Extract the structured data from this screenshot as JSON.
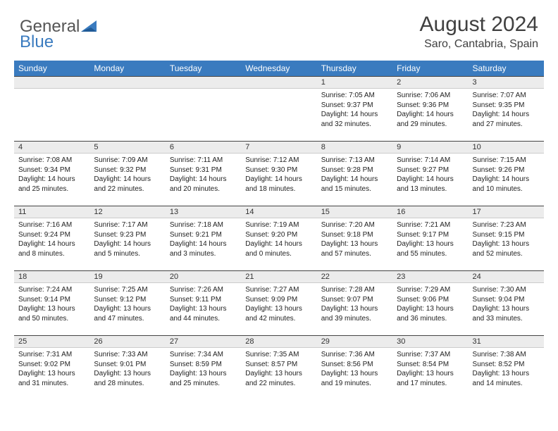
{
  "logo": {
    "text1": "General",
    "text2": "Blue"
  },
  "title": "August 2024",
  "location": "Saro, Cantabria, Spain",
  "colors": {
    "header_bg": "#3a7bbf",
    "header_text": "#ffffff",
    "daynum_bg": "#ececec",
    "rule": "#444444",
    "body_text": "#222222"
  },
  "weekdays": [
    "Sunday",
    "Monday",
    "Tuesday",
    "Wednesday",
    "Thursday",
    "Friday",
    "Saturday"
  ],
  "weeks": [
    [
      {
        "n": "",
        "lines": []
      },
      {
        "n": "",
        "lines": []
      },
      {
        "n": "",
        "lines": []
      },
      {
        "n": "",
        "lines": []
      },
      {
        "n": "1",
        "lines": [
          "Sunrise: 7:05 AM",
          "Sunset: 9:37 PM",
          "Daylight: 14 hours",
          "and 32 minutes."
        ]
      },
      {
        "n": "2",
        "lines": [
          "Sunrise: 7:06 AM",
          "Sunset: 9:36 PM",
          "Daylight: 14 hours",
          "and 29 minutes."
        ]
      },
      {
        "n": "3",
        "lines": [
          "Sunrise: 7:07 AM",
          "Sunset: 9:35 PM",
          "Daylight: 14 hours",
          "and 27 minutes."
        ]
      }
    ],
    [
      {
        "n": "4",
        "lines": [
          "Sunrise: 7:08 AM",
          "Sunset: 9:34 PM",
          "Daylight: 14 hours",
          "and 25 minutes."
        ]
      },
      {
        "n": "5",
        "lines": [
          "Sunrise: 7:09 AM",
          "Sunset: 9:32 PM",
          "Daylight: 14 hours",
          "and 22 minutes."
        ]
      },
      {
        "n": "6",
        "lines": [
          "Sunrise: 7:11 AM",
          "Sunset: 9:31 PM",
          "Daylight: 14 hours",
          "and 20 minutes."
        ]
      },
      {
        "n": "7",
        "lines": [
          "Sunrise: 7:12 AM",
          "Sunset: 9:30 PM",
          "Daylight: 14 hours",
          "and 18 minutes."
        ]
      },
      {
        "n": "8",
        "lines": [
          "Sunrise: 7:13 AM",
          "Sunset: 9:28 PM",
          "Daylight: 14 hours",
          "and 15 minutes."
        ]
      },
      {
        "n": "9",
        "lines": [
          "Sunrise: 7:14 AM",
          "Sunset: 9:27 PM",
          "Daylight: 14 hours",
          "and 13 minutes."
        ]
      },
      {
        "n": "10",
        "lines": [
          "Sunrise: 7:15 AM",
          "Sunset: 9:26 PM",
          "Daylight: 14 hours",
          "and 10 minutes."
        ]
      }
    ],
    [
      {
        "n": "11",
        "lines": [
          "Sunrise: 7:16 AM",
          "Sunset: 9:24 PM",
          "Daylight: 14 hours",
          "and 8 minutes."
        ]
      },
      {
        "n": "12",
        "lines": [
          "Sunrise: 7:17 AM",
          "Sunset: 9:23 PM",
          "Daylight: 14 hours",
          "and 5 minutes."
        ]
      },
      {
        "n": "13",
        "lines": [
          "Sunrise: 7:18 AM",
          "Sunset: 9:21 PM",
          "Daylight: 14 hours",
          "and 3 minutes."
        ]
      },
      {
        "n": "14",
        "lines": [
          "Sunrise: 7:19 AM",
          "Sunset: 9:20 PM",
          "Daylight: 14 hours",
          "and 0 minutes."
        ]
      },
      {
        "n": "15",
        "lines": [
          "Sunrise: 7:20 AM",
          "Sunset: 9:18 PM",
          "Daylight: 13 hours",
          "and 57 minutes."
        ]
      },
      {
        "n": "16",
        "lines": [
          "Sunrise: 7:21 AM",
          "Sunset: 9:17 PM",
          "Daylight: 13 hours",
          "and 55 minutes."
        ]
      },
      {
        "n": "17",
        "lines": [
          "Sunrise: 7:23 AM",
          "Sunset: 9:15 PM",
          "Daylight: 13 hours",
          "and 52 minutes."
        ]
      }
    ],
    [
      {
        "n": "18",
        "lines": [
          "Sunrise: 7:24 AM",
          "Sunset: 9:14 PM",
          "Daylight: 13 hours",
          "and 50 minutes."
        ]
      },
      {
        "n": "19",
        "lines": [
          "Sunrise: 7:25 AM",
          "Sunset: 9:12 PM",
          "Daylight: 13 hours",
          "and 47 minutes."
        ]
      },
      {
        "n": "20",
        "lines": [
          "Sunrise: 7:26 AM",
          "Sunset: 9:11 PM",
          "Daylight: 13 hours",
          "and 44 minutes."
        ]
      },
      {
        "n": "21",
        "lines": [
          "Sunrise: 7:27 AM",
          "Sunset: 9:09 PM",
          "Daylight: 13 hours",
          "and 42 minutes."
        ]
      },
      {
        "n": "22",
        "lines": [
          "Sunrise: 7:28 AM",
          "Sunset: 9:07 PM",
          "Daylight: 13 hours",
          "and 39 minutes."
        ]
      },
      {
        "n": "23",
        "lines": [
          "Sunrise: 7:29 AM",
          "Sunset: 9:06 PM",
          "Daylight: 13 hours",
          "and 36 minutes."
        ]
      },
      {
        "n": "24",
        "lines": [
          "Sunrise: 7:30 AM",
          "Sunset: 9:04 PM",
          "Daylight: 13 hours",
          "and 33 minutes."
        ]
      }
    ],
    [
      {
        "n": "25",
        "lines": [
          "Sunrise: 7:31 AM",
          "Sunset: 9:02 PM",
          "Daylight: 13 hours",
          "and 31 minutes."
        ]
      },
      {
        "n": "26",
        "lines": [
          "Sunrise: 7:33 AM",
          "Sunset: 9:01 PM",
          "Daylight: 13 hours",
          "and 28 minutes."
        ]
      },
      {
        "n": "27",
        "lines": [
          "Sunrise: 7:34 AM",
          "Sunset: 8:59 PM",
          "Daylight: 13 hours",
          "and 25 minutes."
        ]
      },
      {
        "n": "28",
        "lines": [
          "Sunrise: 7:35 AM",
          "Sunset: 8:57 PM",
          "Daylight: 13 hours",
          "and 22 minutes."
        ]
      },
      {
        "n": "29",
        "lines": [
          "Sunrise: 7:36 AM",
          "Sunset: 8:56 PM",
          "Daylight: 13 hours",
          "and 19 minutes."
        ]
      },
      {
        "n": "30",
        "lines": [
          "Sunrise: 7:37 AM",
          "Sunset: 8:54 PM",
          "Daylight: 13 hours",
          "and 17 minutes."
        ]
      },
      {
        "n": "31",
        "lines": [
          "Sunrise: 7:38 AM",
          "Sunset: 8:52 PM",
          "Daylight: 13 hours",
          "and 14 minutes."
        ]
      }
    ]
  ]
}
